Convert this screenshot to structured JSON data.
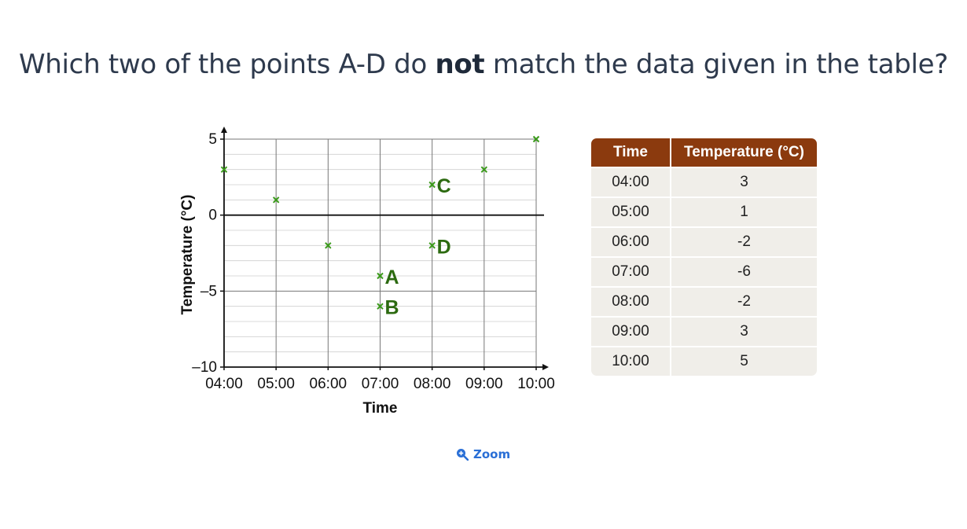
{
  "question": {
    "before": "Which two of the points A-D do ",
    "emphasis": "not",
    "after": " match the data given in the table?"
  },
  "zoom": {
    "label": "Zoom",
    "icon": "zoom-in-icon",
    "color": "#2a6fd6"
  },
  "table": {
    "headers": [
      "Time",
      "Temperature (°C)"
    ],
    "rows": [
      [
        "04:00",
        "3"
      ],
      [
        "05:00",
        "1"
      ],
      [
        "06:00",
        "-2"
      ],
      [
        "07:00",
        "-6"
      ],
      [
        "08:00",
        "-2"
      ],
      [
        "09:00",
        "3"
      ],
      [
        "10:00",
        "5"
      ]
    ],
    "header_color": "#8b3a0e",
    "cell_color": "#f0eee9"
  },
  "chart_data": {
    "type": "scatter",
    "xlabel": "Time",
    "ylabel": "Temperature (°C)",
    "x_ticks": [
      "04:00",
      "05:00",
      "06:00",
      "07:00",
      "08:00",
      "09:00",
      "10:00"
    ],
    "y_ticks": [
      5,
      0,
      -5,
      -10
    ],
    "y_tick_labels": [
      "5",
      "0",
      "–5",
      "–10"
    ],
    "xlim": [
      "04:00",
      "10:00"
    ],
    "ylim": [
      -10,
      5
    ],
    "grid": true,
    "marker_color": "#3a9a1a",
    "label_color": "#2c6a10",
    "points": [
      {
        "x": "04:00",
        "y": 3,
        "label": ""
      },
      {
        "x": "05:00",
        "y": 1,
        "label": ""
      },
      {
        "x": "06:00",
        "y": -2,
        "label": ""
      },
      {
        "x": "07:00",
        "y": -4,
        "label": "A"
      },
      {
        "x": "07:00",
        "y": -6,
        "label": "B"
      },
      {
        "x": "08:00",
        "y": 2,
        "label": "C"
      },
      {
        "x": "08:00",
        "y": -2,
        "label": "D"
      },
      {
        "x": "09:00",
        "y": 3,
        "label": ""
      },
      {
        "x": "10:00",
        "y": 5,
        "label": ""
      }
    ]
  }
}
